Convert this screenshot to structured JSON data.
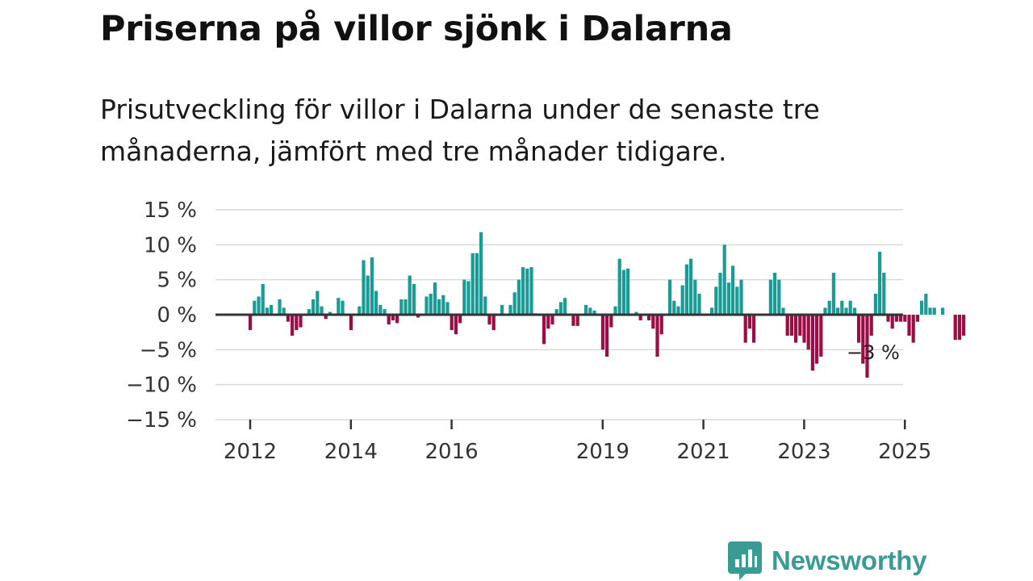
{
  "title": "Priserna på villor sjönk i Dalarna",
  "subtitle": "Prisutveckling för villor i Dalarna under de senaste tre månaderna, jämfört med tre månader tidigare.",
  "brand": {
    "name": "Newsworthy",
    "color": "#3a9a94",
    "icon": "newsworthy-bar-chart-icon"
  },
  "colors": {
    "positive": "#1a9c96",
    "negative": "#9b0d45",
    "grid": "#d9d9d9",
    "zero": "#333333"
  },
  "chart_data": {
    "type": "bar",
    "title": "Priserna på villor sjönk i Dalarna",
    "xlabel": "",
    "ylabel": "",
    "ylim": [
      -15,
      15
    ],
    "y_ticks": [
      {
        "value": 15,
        "label": "15 %"
      },
      {
        "value": 10,
        "label": "10 %"
      },
      {
        "value": 5,
        "label": "5 %"
      },
      {
        "value": 0,
        "label": "0 %"
      },
      {
        "value": -5,
        "label": "−5 %"
      },
      {
        "value": -10,
        "label": "−10 %"
      },
      {
        "value": -15,
        "label": "−15 %"
      }
    ],
    "x_start_year": 2012,
    "x_ticks": [
      {
        "year": 2012,
        "label": "2012"
      },
      {
        "year": 2014,
        "label": "2014"
      },
      {
        "year": 2016,
        "label": "2016"
      },
      {
        "year": 2019,
        "label": "2019"
      },
      {
        "year": 2021,
        "label": "2021"
      },
      {
        "year": 2023,
        "label": "2023"
      },
      {
        "year": 2025,
        "label": "2025"
      }
    ],
    "annotation": {
      "label": "−3 %",
      "value": -3
    },
    "values": [
      -2.2,
      2.0,
      2.6,
      4.4,
      1.0,
      1.4,
      0.0,
      2.2,
      1.0,
      -1.0,
      -3.0,
      -2.2,
      -1.8,
      0.0,
      0.8,
      2.2,
      3.4,
      1.2,
      -0.6,
      0.4,
      0.0,
      2.4,
      2.0,
      0.0,
      -2.2,
      0.0,
      1.2,
      7.8,
      5.6,
      8.2,
      3.4,
      1.4,
      0.8,
      -1.4,
      -0.8,
      -1.2,
      2.2,
      2.2,
      5.6,
      4.4,
      -0.4,
      0.0,
      2.6,
      3.0,
      4.6,
      2.2,
      2.8,
      1.8,
      -2.2,
      -2.8,
      -1.2,
      5.0,
      4.8,
      8.8,
      8.8,
      11.8,
      2.6,
      -1.4,
      -2.2,
      0.0,
      1.4,
      0.0,
      1.4,
      3.2,
      5.0,
      6.8,
      6.6,
      6.8,
      0.2,
      0.0,
      -4.2,
      -2.0,
      -1.4,
      0.8,
      1.8,
      2.4,
      0.0,
      -1.6,
      -1.6,
      0.0,
      1.4,
      1.0,
      0.6,
      0.0,
      -5.0,
      -6.0,
      -1.8,
      1.2,
      8.0,
      6.4,
      6.6,
      0.0,
      0.4,
      -0.8,
      0.0,
      -0.8,
      -2.0,
      -6.0,
      -2.8,
      0.0,
      5.0,
      2.0,
      1.2,
      4.2,
      7.2,
      8.0,
      5.0,
      3.0,
      0.0,
      0.0,
      1.0,
      4.0,
      6.0,
      10.0,
      4.6,
      7.0,
      4.0,
      5.0,
      -4.0,
      -2.0,
      -4.0,
      0.0,
      0.0,
      0.0,
      5.0,
      6.0,
      5.0,
      1.0,
      -3.0,
      -3.0,
      -4.0,
      -3.0,
      -4.0,
      -5.0,
      -8.0,
      -7.0,
      -6.0,
      1.0,
      2.0,
      6.0,
      1.0,
      2.0,
      1.0,
      2.0,
      1.0,
      -4.0,
      -7.0,
      -9.0,
      -3.0,
      3.0,
      9.0,
      6.0,
      -1.0,
      -2.0,
      -1.0,
      -1.0,
      -1.0,
      -3.0,
      -4.0,
      -1.0,
      2.0,
      3.0,
      1.0,
      1.0,
      0.0,
      1.0,
      0.0,
      0.0,
      -3.6,
      -3.6,
      -3.0
    ]
  }
}
